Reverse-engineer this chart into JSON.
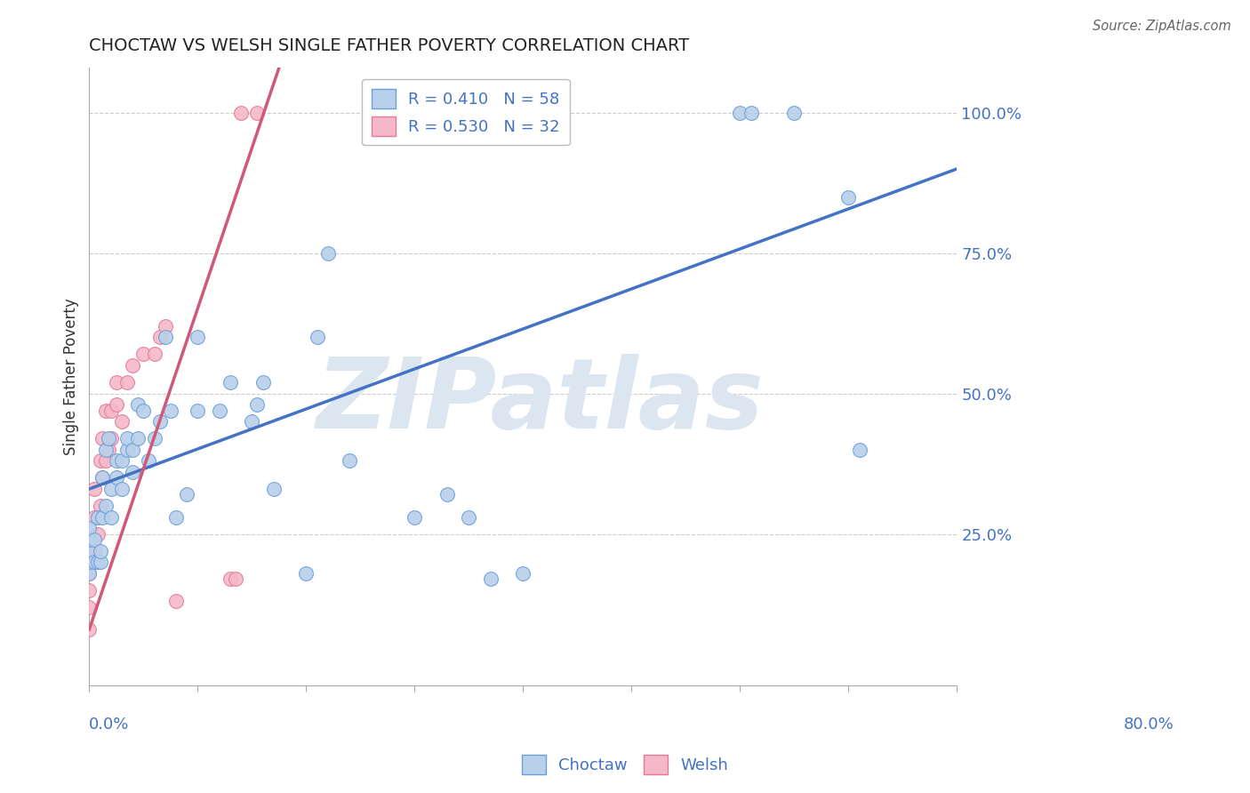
{
  "title": "CHOCTAW VS WELSH SINGLE FATHER POVERTY CORRELATION CHART",
  "source": "Source: ZipAtlas.com",
  "ylabel": "Single Father Poverty",
  "x_label_bottom_left": "0.0%",
  "x_label_bottom_right": "80.0%",
  "y_tick_labels": [
    "100.0%",
    "75.0%",
    "50.0%",
    "25.0%"
  ],
  "y_tick_values": [
    1.0,
    0.75,
    0.5,
    0.25
  ],
  "xlim": [
    0.0,
    0.8
  ],
  "ylim": [
    -0.02,
    1.08
  ],
  "choctaw_R": 0.41,
  "choctaw_N": 58,
  "welsh_R": 0.53,
  "welsh_N": 32,
  "choctaw_color": "#b8d0ea",
  "welsh_color": "#f4b8c8",
  "choctaw_edge_color": "#6a9fd8",
  "welsh_edge_color": "#e87898",
  "choctaw_line_color": "#4472c4",
  "welsh_line_color": "#d05878",
  "legend_text_color": "#4472c4",
  "watermark": "ZIPatlas",
  "watermark_color": "#dce6f0",
  "choctaw_x": [
    0.0,
    0.0,
    0.0,
    0.0,
    0.0,
    0.005,
    0.005,
    0.008,
    0.008,
    0.01,
    0.01,
    0.012,
    0.012,
    0.015,
    0.015,
    0.018,
    0.02,
    0.02,
    0.025,
    0.025,
    0.03,
    0.03,
    0.035,
    0.035,
    0.04,
    0.04,
    0.045,
    0.045,
    0.05,
    0.055,
    0.06,
    0.065,
    0.07,
    0.075,
    0.08,
    0.09,
    0.1,
    0.1,
    0.12,
    0.13,
    0.15,
    0.155,
    0.16,
    0.17,
    0.2,
    0.21,
    0.22,
    0.24,
    0.3,
    0.33,
    0.35,
    0.37,
    0.4,
    0.6,
    0.61,
    0.65,
    0.7,
    0.71
  ],
  "choctaw_y": [
    0.18,
    0.2,
    0.22,
    0.24,
    0.26,
    0.2,
    0.24,
    0.2,
    0.28,
    0.2,
    0.22,
    0.28,
    0.35,
    0.3,
    0.4,
    0.42,
    0.28,
    0.33,
    0.38,
    0.35,
    0.33,
    0.38,
    0.4,
    0.42,
    0.36,
    0.4,
    0.42,
    0.48,
    0.47,
    0.38,
    0.42,
    0.45,
    0.6,
    0.47,
    0.28,
    0.32,
    0.47,
    0.6,
    0.47,
    0.52,
    0.45,
    0.48,
    0.52,
    0.33,
    0.18,
    0.6,
    0.75,
    0.38,
    0.28,
    0.32,
    0.28,
    0.17,
    0.18,
    1.0,
    1.0,
    1.0,
    0.85,
    0.4
  ],
  "welsh_x": [
    0.0,
    0.0,
    0.0,
    0.0,
    0.0,
    0.005,
    0.005,
    0.005,
    0.008,
    0.01,
    0.01,
    0.012,
    0.012,
    0.015,
    0.015,
    0.018,
    0.02,
    0.02,
    0.025,
    0.025,
    0.03,
    0.035,
    0.04,
    0.05,
    0.06,
    0.065,
    0.07,
    0.08,
    0.13,
    0.135,
    0.14,
    0.155
  ],
  "welsh_y": [
    0.08,
    0.12,
    0.15,
    0.18,
    0.22,
    0.22,
    0.28,
    0.33,
    0.25,
    0.3,
    0.38,
    0.35,
    0.42,
    0.38,
    0.47,
    0.4,
    0.42,
    0.47,
    0.48,
    0.52,
    0.45,
    0.52,
    0.55,
    0.57,
    0.57,
    0.6,
    0.62,
    0.13,
    0.17,
    0.17,
    1.0,
    1.0
  ],
  "choctaw_line_x": [
    0.0,
    0.8
  ],
  "choctaw_line_y": [
    0.33,
    0.9
  ],
  "welsh_line_x": [
    0.0,
    0.175
  ],
  "welsh_line_y": [
    0.08,
    1.08
  ]
}
